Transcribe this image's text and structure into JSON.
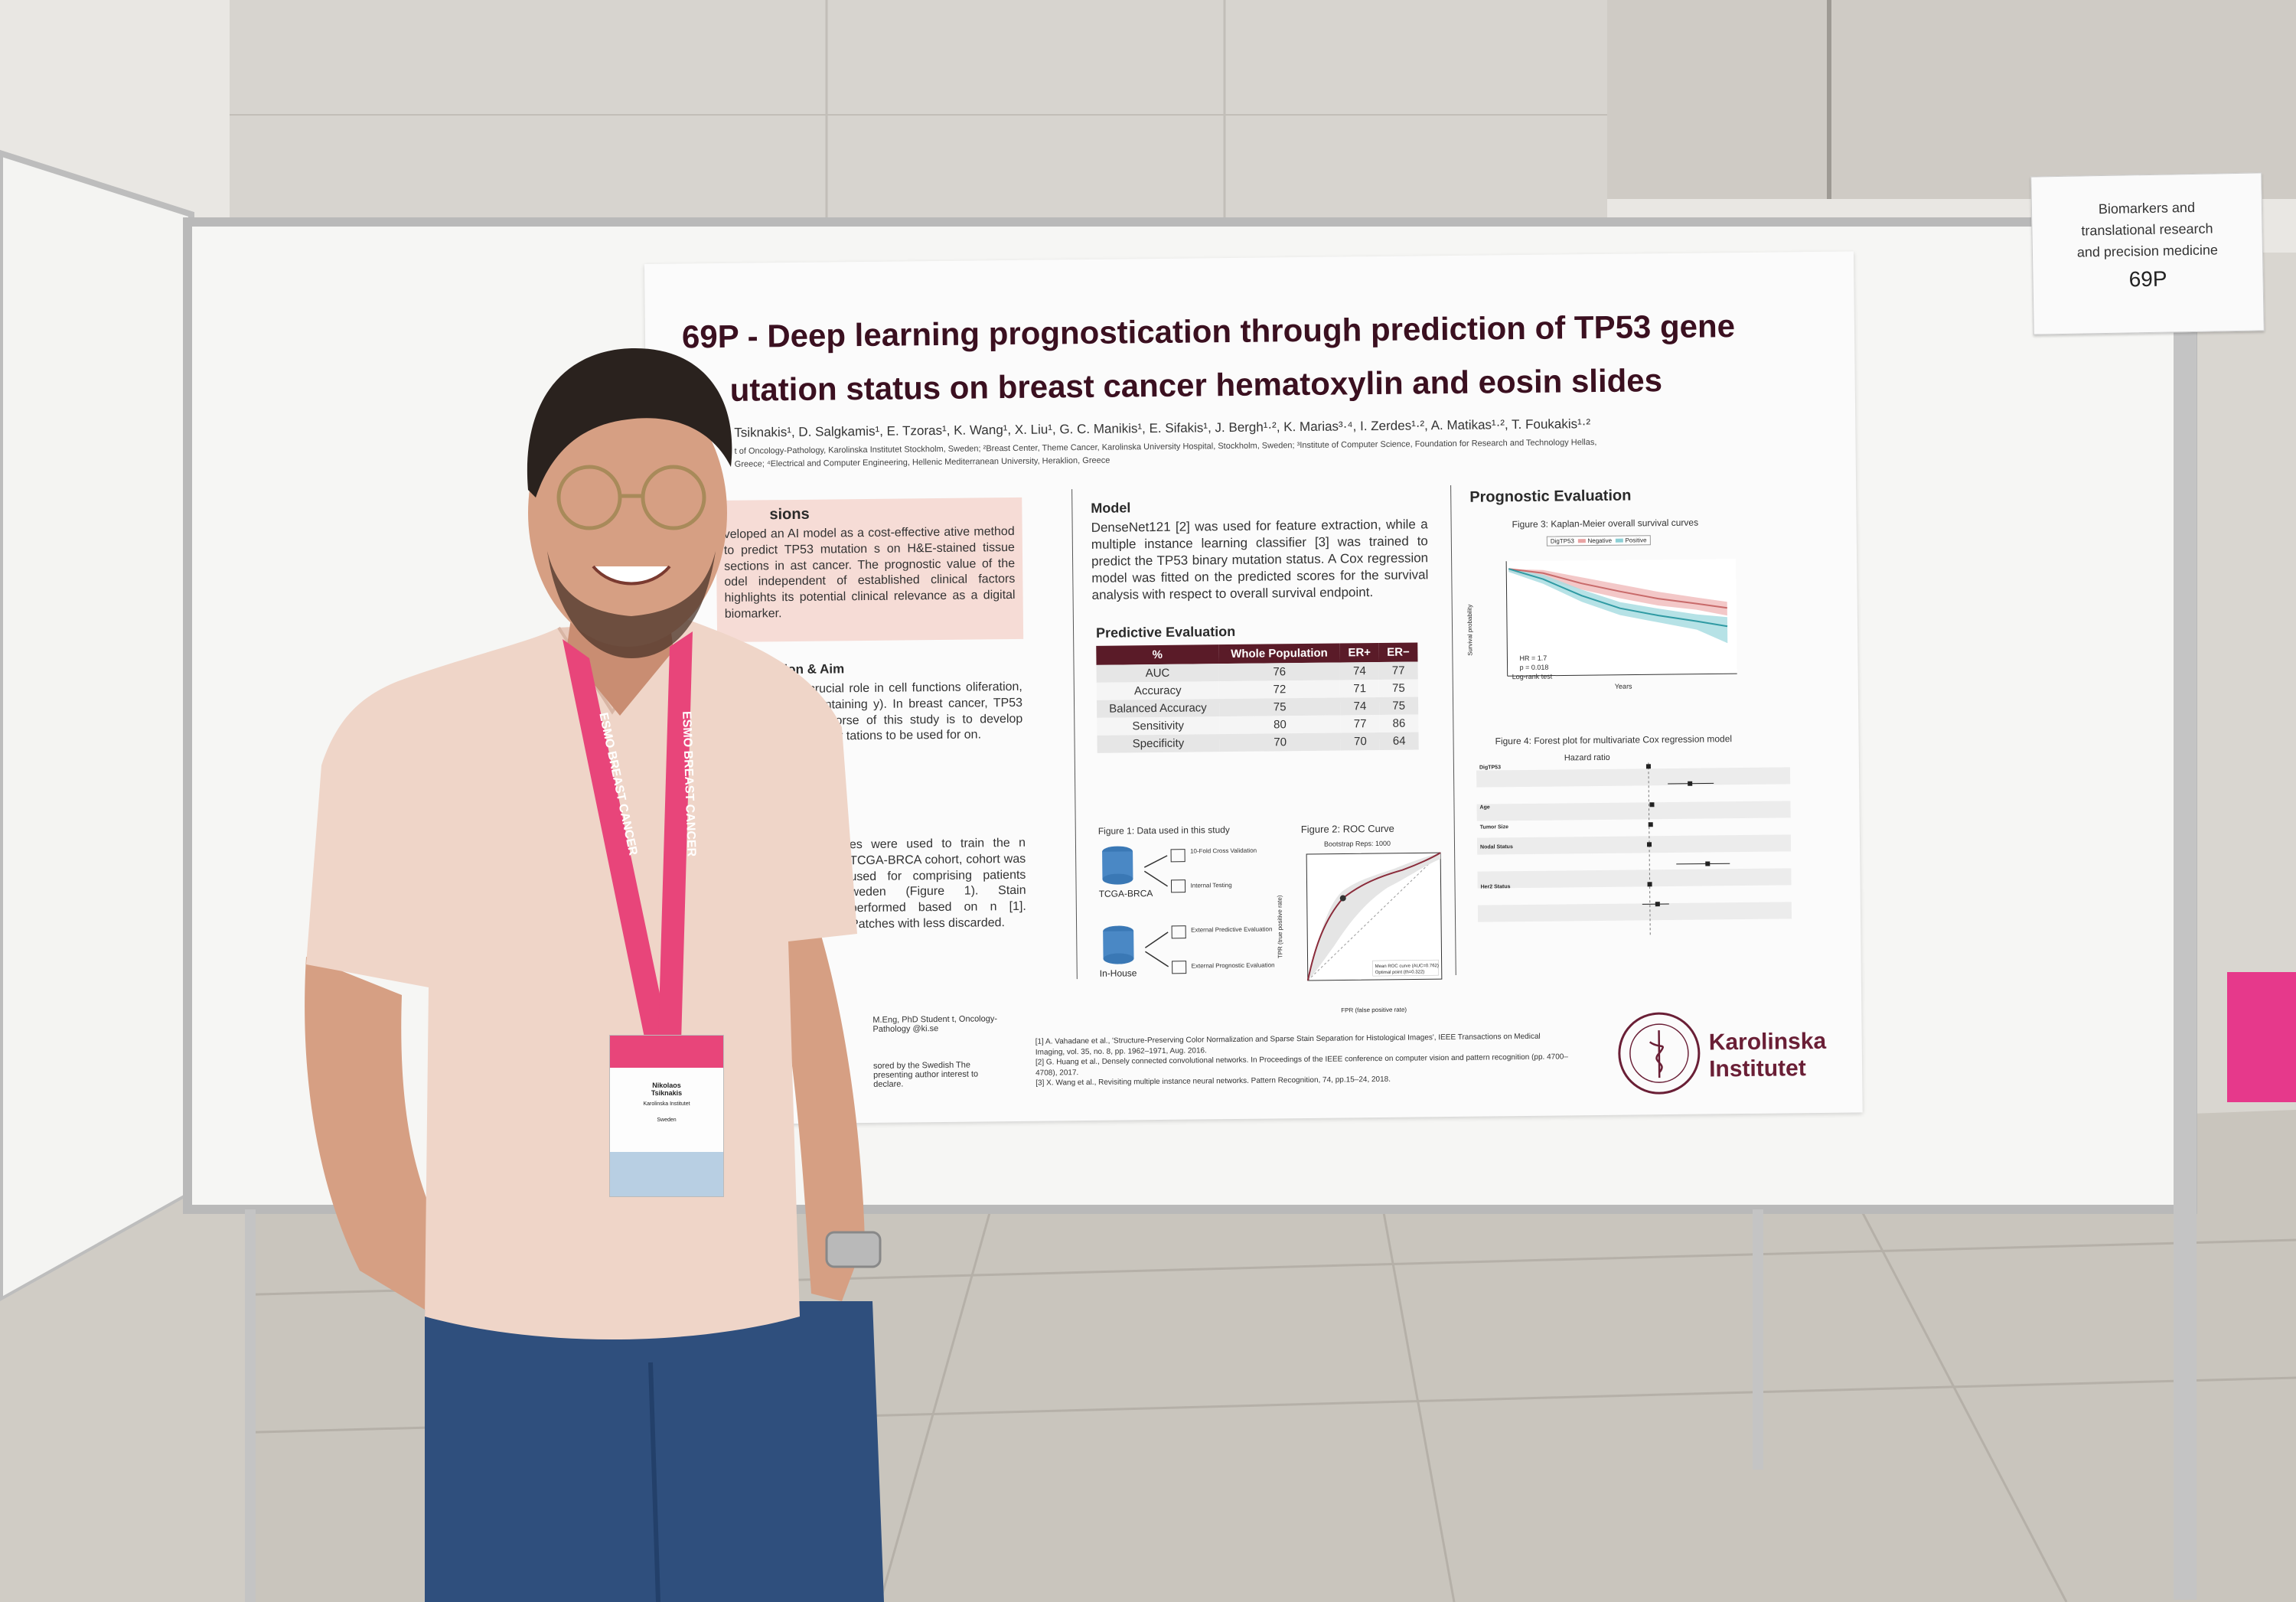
{
  "poster": {
    "title_line1": "69P - Deep learning prognostication through prediction of TP53 gene",
    "title_line2": "utation status on breast cancer hematoxylin and eosin slides",
    "authors": "Tsiknakis¹, D. Salgkamis¹, E. Tzoras¹, K. Wang¹, X. Liu¹, G. C. Manikis¹, E. Sifakis¹, J. Bergh¹·², K. Marias³·⁴, I. Zerdes¹·², A. Matikas¹·², T. Foukakis¹·²",
    "affiliation1": "t of Oncology-Pathology, Karolinska Institutet Stockholm, Sweden; ²Breast Center, Theme Cancer, Karolinska University Hospital, Stockholm, Sweden; ³Institute of Computer Science, Foundation for Research and Technology Hellas,",
    "affiliation2": "Greece; ⁴Electrical and Computer Engineering, Hellenic Mediterranean University, Heraklion, Greece",
    "conclusions": {
      "heading": "sions",
      "text": "veloped an AI model as a cost-effective ative method to predict TP53 mutation s on H&E-stained tissue sections in ast cancer. The prognostic value of the odel independent of established clinical factors highlights its potential clinical relevance as a digital biomarker."
    },
    "intro": {
      "heading": "ntroduction & Aim",
      "text": "gene plays a crucial role in cell functions oliferation, survival and maintaining y). In breast cancer, TP53 associated with worse of this study is to develop gence (AI) model for tations to be used for on."
    },
    "methods_text": "es were used to train the n TCGA-BRCA cohort, cohort was used for comprising patients weden (Figure 1). Stain performed based on n [1]. Patches with less discarded.",
    "contact_text": "M.Eng, PhD Student t, Oncology-Pathology @ki.se",
    "funding_text": "sored by the Swedish The presenting author interest to declare.",
    "model": {
      "heading": "Model",
      "text": "DenseNet121 [2] was used for feature extraction, while a multiple instance learning classifier [3] was trained to predict the TP53 binary mutation status. A Cox regression model was fitted on the predicted scores for the survival analysis with respect to overall survival endpoint."
    },
    "predictive": {
      "heading": "Predictive Evaluation",
      "columns": [
        "%",
        "Whole Population",
        "ER+",
        "ER−"
      ],
      "rows": [
        [
          "AUC",
          "76",
          "74",
          "77"
        ],
        [
          "Accuracy",
          "72",
          "71",
          "75"
        ],
        [
          "Balanced Accuracy",
          "75",
          "74",
          "75"
        ],
        [
          "Sensitivity",
          "80",
          "77",
          "86"
        ],
        [
          "Specificity",
          "70",
          "70",
          "64"
        ]
      ]
    },
    "fig1": {
      "caption": "Figure 1: Data used in this study",
      "db1_label": "TCGA-BRCA",
      "db2_label": "In-House",
      "out1": "10-Fold Cross Validation",
      "out2": "Internal Testing",
      "out3": "External Predictive Evaluation",
      "out4": "External Prognostic Evaluation"
    },
    "fig2": {
      "caption": "Figure 2: ROC Curve",
      "subtitle": "Bootstrap Reps: 1000",
      "ylabel": "TPR (true positive rate)",
      "xlabel": "FPR (false positive rate)",
      "legend1": "Mean ROC curve (AUC=0.762)",
      "legend2": "Optimal point (th=0.322)",
      "ticks": [
        "0.0",
        "0.2",
        "0.4",
        "0.6",
        "0.8",
        "1.0"
      ]
    },
    "prognostic": {
      "heading": "Prognostic Evaluation",
      "fig3_caption": "Figure 3: Kaplan-Meier overall survival curves",
      "legend_title": "DigTP53",
      "legend_neg": "Negative",
      "legend_pos": "Positive",
      "ylabel": "Survival probability",
      "xlabel": "Years",
      "yticks": [
        "1.00",
        "0.75",
        "0.50",
        "0.25",
        "0.00"
      ],
      "xticks": [
        "0",
        "2.5",
        "5",
        "7.5",
        "10",
        "12.5"
      ],
      "stats1": "HR = 1.7",
      "stats2": "p = 0.018",
      "stats3": "Log-rank test",
      "fig4_caption": "Figure 4: Forest plot for multivariate Cox regression model",
      "fig4_title": "Hazard ratio",
      "forest_vars": [
        "DigTP53",
        "Age",
        "Tumor Size",
        "Nodal Status",
        "Her2 Status"
      ]
    },
    "references": [
      "[1] A. Vahadane et al., 'Structure-Preserving Color Normalization and Sparse Stain Separation for Histological Images', IEEE Transactions on Medical Imaging, vol. 35, no. 8, pp. 1962–1971, Aug. 2016.",
      "[2] G. Huang et al., Densely connected convolutional networks. In Proceedings of the IEEE conference on computer vision and pattern recognition (pp. 4700–4708), 2017.",
      "[3] X. Wang et al., Revisiting multiple instance neural networks. Pattern Recognition, 74, pp.15–24, 2018."
    ],
    "logo_text1": "Karolinska",
    "logo_text2": "Institutet"
  },
  "sign": {
    "line1": "Biomarkers and",
    "line2": "translational research",
    "line3": "and precision medicine",
    "number": "69P"
  },
  "badge": {
    "lanyard_text": "ESMO BREAST CANCER",
    "name1": "Nikolaos",
    "name2": "Tsiknakis",
    "org": "Karolinska Institutet",
    "country": "Sweden"
  },
  "colors": {
    "poster_accent": "#5a1b28",
    "lanyard": "#e8457a",
    "shirt": "#efd5c8",
    "jeans": "#2f4f7d"
  }
}
